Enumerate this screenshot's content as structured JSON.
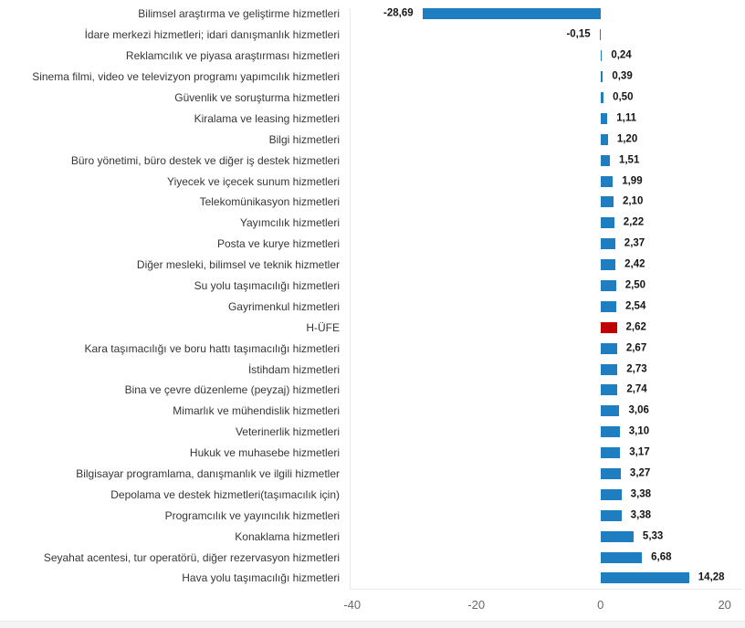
{
  "page": {
    "background": "#ffffff",
    "footer_strip_color": "#f4f4f5"
  },
  "chart_data": {
    "type": "bar",
    "orientation": "horizontal",
    "title": "",
    "xlabel": "",
    "ylabel": "",
    "grid": false,
    "legend": false,
    "categories": [
      "Bilimsel araştırma ve geliştirme hizmetleri",
      "İdare merkezi hizmetleri; idari danışmanlık hizmetleri",
      "Reklamcılık ve piyasa araştırması hizmetleri",
      "Sinema filmi, video ve televizyon programı yapımcılık hizmetleri",
      "Güvenlik ve soruşturma hizmetleri",
      "Kiralama ve leasing hizmetleri",
      "Bilgi hizmetleri",
      "Büro yönetimi, büro destek ve diğer iş destek hizmetleri",
      "Yiyecek ve içecek sunum hizmetleri",
      "Telekomünikasyon hizmetleri",
      "Yayımcılık hizmetleri",
      "Posta ve kurye hizmetleri",
      "Diğer mesleki, bilimsel ve teknik hizmetler",
      "Su yolu taşımacılığı hizmetleri",
      "Gayrimenkul hizmetleri",
      "H-ÜFE",
      "Kara taşımacılığı ve boru hattı taşımacılığı hizmetleri",
      "İstihdam hizmetleri",
      "Bina ve çevre düzenleme (peyzaj) hizmetleri",
      "Mimarlık ve mühendislik hizmetleri",
      "Veterinerlik hizmetleri",
      "Hukuk ve muhasebe hizmetleri",
      "Bilgisayar programlama, danışmanlık ve ilgili hizmetler",
      "Depolama ve destek hizmetleri(taşımacılık için)",
      "Programcılık ve yayıncılık hizmetleri",
      "Konaklama hizmetleri",
      "Seyahat acentesi, tur operatörü, diğer rezervasyon hizmetleri",
      "Hava yolu taşımacılığı hizmetleri"
    ],
    "values": [
      -28.69,
      -0.15,
      0.24,
      0.39,
      0.5,
      1.11,
      1.2,
      1.51,
      1.99,
      2.1,
      2.22,
      2.37,
      2.42,
      2.5,
      2.54,
      2.62,
      2.67,
      2.73,
      2.74,
      3.06,
      3.1,
      3.17,
      3.27,
      3.38,
      3.38,
      5.33,
      6.68,
      14.28
    ],
    "value_labels": [
      "-28,69",
      "-0,15",
      "0,24",
      "0,39",
      "0,50",
      "1,11",
      "1,20",
      "1,51",
      "1,99",
      "2,10",
      "2,22",
      "2,37",
      "2,42",
      "2,50",
      "2,54",
      "2,62",
      "2,67",
      "2,73",
      "2,74",
      "3,06",
      "3,10",
      "3,17",
      "3,27",
      "3,38",
      "3,38",
      "5,33",
      "6,68",
      "14,28"
    ],
    "highlight_category": "H-ÜFE",
    "colors": {
      "bar": "#1e7ec0",
      "highlight": "#c00000",
      "axis_line": "#e8e8e8",
      "category_text": "#363636",
      "value_text": "#141414",
      "tick_text": "#65696e"
    },
    "xlim": [
      -40.4,
      22.4
    ],
    "x_ticks": [
      -40,
      -20,
      0,
      20
    ],
    "x_tick_labels": [
      "-40",
      "-20",
      "0",
      "20"
    ]
  }
}
